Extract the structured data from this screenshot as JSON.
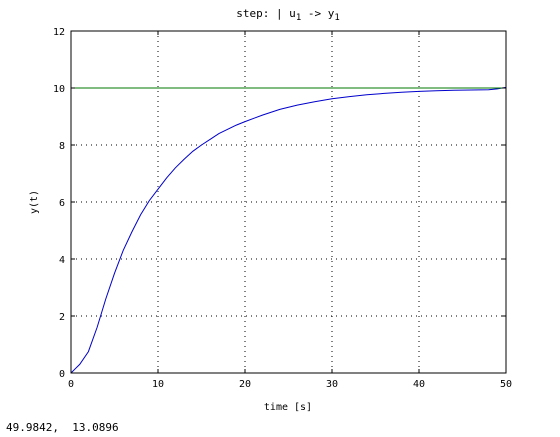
{
  "chart_data": {
    "type": "line",
    "title_main": "step: | u",
    "title_sub1": "1",
    "title_arrow": " -> y",
    "title_sub2": "1",
    "xlabel": "time [s]",
    "ylabel": "y(t)",
    "xlim": [
      0,
      50
    ],
    "ylim": [
      0,
      12
    ],
    "xticks": [
      0,
      10,
      20,
      30,
      40,
      50
    ],
    "yticks": [
      0,
      2,
      4,
      6,
      8,
      10,
      12
    ],
    "grid": true,
    "series": [
      {
        "color": "#0000cc",
        "x": [
          0,
          0.5,
          1,
          2,
          3,
          4,
          5,
          6,
          7,
          8,
          9,
          10,
          11,
          12,
          13,
          14,
          15,
          16,
          17,
          18,
          19,
          20,
          22,
          24,
          26,
          28,
          30,
          32,
          34,
          36,
          38,
          40,
          42,
          44,
          46,
          48,
          49,
          50
        ],
        "y": [
          0,
          0.15,
          0.3,
          0.75,
          1.6,
          2.6,
          3.5,
          4.3,
          4.95,
          5.55,
          6.05,
          6.45,
          6.85,
          7.2,
          7.5,
          7.78,
          8.0,
          8.2,
          8.4,
          8.55,
          8.7,
          8.82,
          9.05,
          9.25,
          9.4,
          9.52,
          9.62,
          9.7,
          9.76,
          9.81,
          9.85,
          9.88,
          9.9,
          9.92,
          9.93,
          9.94,
          9.97,
          10.02
        ]
      },
      {
        "color": "#007700",
        "x": [
          0,
          50
        ],
        "y": [
          10,
          10
        ]
      }
    ]
  },
  "status": {
    "coordinates": "49.9842,  13.0896"
  }
}
